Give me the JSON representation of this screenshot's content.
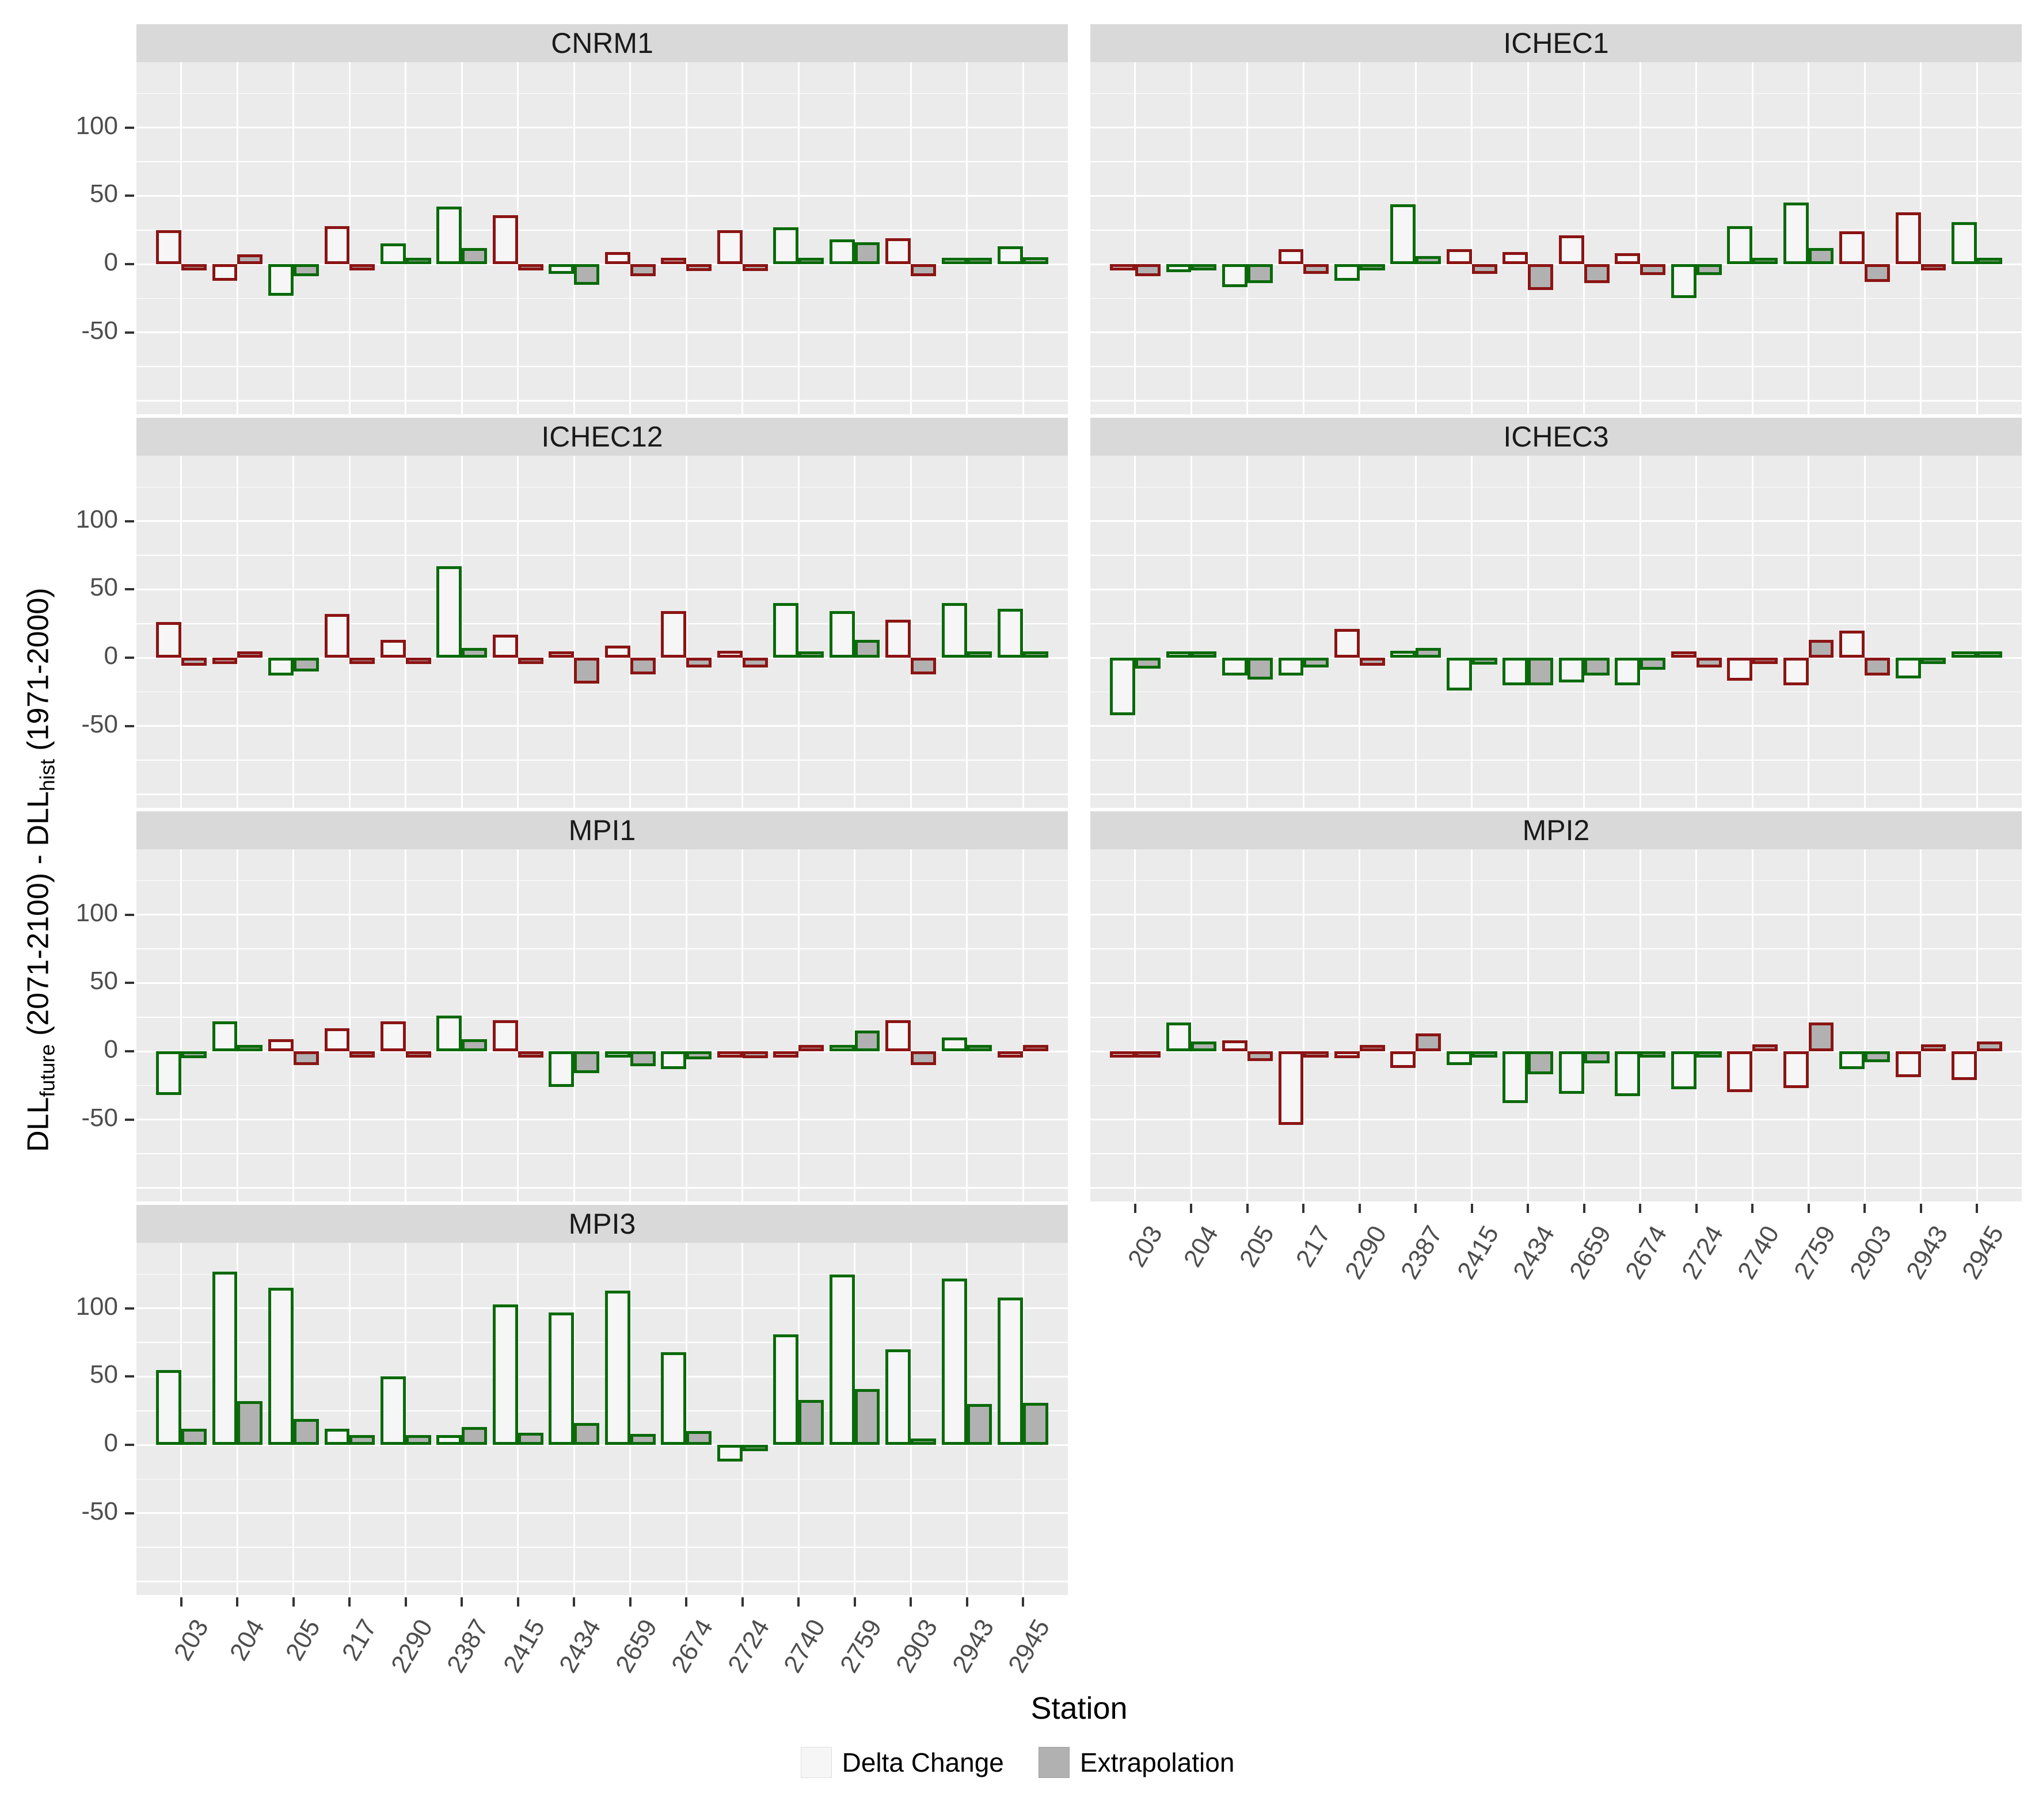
{
  "y_axis_title": {
    "dll1": "DLL",
    "sub1": "future",
    "mid": " (2071-2100) - ",
    "dll2": "DLL",
    "sub2": "hist",
    "tail": " (1971-2000)"
  },
  "x_axis_title": "Station",
  "legend": [
    {
      "label": "Delta Change",
      "fill": "#f6f6f6"
    },
    {
      "label": "Extrapolation",
      "fill": "#b1b1b1"
    }
  ],
  "colors": {
    "red_outline": "#8b1414",
    "green_outline": "#0a6a0a",
    "delta_fill": "#f6f6f6",
    "extrapolation_fill": "#b1b1b1",
    "panel_bg": "#ebebeb",
    "strip_bg": "#d9d9d9",
    "grid": "#ffffff",
    "axis_text": "#4d4d4d"
  },
  "chart_data": {
    "type": "bar",
    "title": "",
    "xlabel": "Station",
    "ylabel": "DLL_future (2071-2100) - DLL_hist (1971-2000)",
    "ylim": [
      -110,
      148
    ],
    "y_ticks": [
      100,
      50,
      0,
      -50
    ],
    "grid_major": [
      -100,
      -50,
      0,
      50,
      100
    ],
    "grid_minor": [
      -75,
      -25,
      25,
      75,
      125
    ],
    "legend_position": "bottom",
    "series_names": [
      "Delta Change",
      "Extrapolation"
    ],
    "categories": [
      "203",
      "204",
      "205",
      "217",
      "2290",
      "2387",
      "2415",
      "2434",
      "2659",
      "2674",
      "2724",
      "2740",
      "2759",
      "2903",
      "2943",
      "2945"
    ],
    "facets": [
      {
        "name": "CNRM1",
        "row": 0,
        "col": 0,
        "x_axis": false,
        "outline": [
          "red",
          "red",
          "green",
          "red",
          "green",
          "green",
          "red",
          "green",
          "red",
          "red",
          "red",
          "green",
          "green",
          "red",
          "green",
          "green"
        ],
        "delta": [
          25,
          -12,
          -23,
          28,
          15,
          42,
          36,
          -7,
          9,
          4,
          25,
          27,
          18,
          19,
          4,
          13
        ],
        "extrapolation": [
          -4,
          7,
          -9,
          -2,
          2,
          12,
          -2,
          -15,
          -9,
          -5,
          -5,
          4,
          16,
          -9,
          4,
          5
        ]
      },
      {
        "name": "ICHEC1",
        "row": 0,
        "col": 1,
        "x_axis": false,
        "outline": [
          "red",
          "green",
          "green",
          "red",
          "green",
          "green",
          "red",
          "red",
          "red",
          "red",
          "green",
          "green",
          "green",
          "red",
          "red",
          "green"
        ],
        "delta": [
          -2,
          -6,
          -17,
          11,
          -12,
          44,
          11,
          9,
          21,
          8,
          -25,
          28,
          45,
          24,
          38,
          31
        ],
        "extrapolation": [
          -9,
          -2,
          -14,
          -7,
          -3,
          6,
          -7,
          -19,
          -14,
          -8,
          -8,
          1,
          12,
          -13,
          -1,
          1
        ]
      },
      {
        "name": "ICHEC12",
        "row": 1,
        "col": 0,
        "x_axis": false,
        "outline": [
          "red",
          "red",
          "green",
          "red",
          "red",
          "green",
          "red",
          "red",
          "red",
          "red",
          "red",
          "green",
          "green",
          "red",
          "green",
          "green"
        ],
        "delta": [
          26,
          -2,
          -13,
          32,
          13,
          67,
          17,
          4,
          9,
          34,
          5,
          40,
          34,
          28,
          40,
          36
        ],
        "extrapolation": [
          -6,
          3,
          -10,
          -3,
          -3,
          7,
          -4,
          -19,
          -12,
          -7,
          -7,
          1,
          13,
          -12,
          1,
          2
        ]
      },
      {
        "name": "ICHEC3",
        "row": 1,
        "col": 1,
        "x_axis": false,
        "outline": [
          "green",
          "green",
          "green",
          "green",
          "red",
          "green",
          "green",
          "green",
          "green",
          "green",
          "red",
          "red",
          "red",
          "red",
          "green",
          "green"
        ],
        "delta": [
          -42,
          2,
          -13,
          -13,
          21,
          5,
          -24,
          -20,
          -18,
          -20,
          3,
          -17,
          -20,
          20,
          -15,
          1
        ],
        "extrapolation": [
          -8,
          2,
          -16,
          -7,
          -6,
          7,
          -5,
          -20,
          -13,
          -9,
          -7,
          -1,
          13,
          -13,
          -2,
          2
        ]
      },
      {
        "name": "MPI1",
        "row": 2,
        "col": 0,
        "x_axis": false,
        "outline": [
          "green",
          "green",
          "red",
          "red",
          "red",
          "green",
          "red",
          "green",
          "green",
          "green",
          "red",
          "red",
          "green",
          "red",
          "green",
          "red"
        ],
        "delta": [
          -32,
          22,
          9,
          17,
          22,
          26,
          23,
          -26,
          -4,
          -13,
          -2,
          -1,
          4,
          23,
          10,
          -2
        ],
        "extrapolation": [
          -5,
          4,
          -10,
          -1,
          -1,
          9,
          -2,
          -16,
          -11,
          -6,
          -5,
          4,
          15,
          -10,
          1,
          4
        ]
      },
      {
        "name": "MPI2",
        "row": 2,
        "col": 1,
        "x_axis": true,
        "outline": [
          "red",
          "green",
          "red",
          "red",
          "red",
          "red",
          "green",
          "green",
          "green",
          "green",
          "green",
          "red",
          "red",
          "green",
          "red",
          "red"
        ],
        "delta": [
          -1,
          21,
          8,
          -54,
          -5,
          -12,
          -10,
          -38,
          -31,
          -33,
          -28,
          -30,
          -27,
          -13,
          -19,
          -21
        ],
        "extrapolation": [
          -4,
          7,
          -7,
          -1,
          2,
          13,
          -1,
          -17,
          -9,
          -2,
          -2,
          5,
          21,
          -8,
          5,
          7
        ]
      },
      {
        "name": "MPI3",
        "row": 3,
        "col": 0,
        "x_axis": true,
        "outline": [
          "green",
          "green",
          "green",
          "green",
          "green",
          "green",
          "green",
          "green",
          "green",
          "green",
          "green",
          "green",
          "green",
          "green",
          "green",
          "green"
        ],
        "delta": [
          55,
          127,
          115,
          12,
          50,
          7,
          103,
          97,
          113,
          68,
          -12,
          81,
          125,
          70,
          122,
          108
        ],
        "extrapolation": [
          12,
          32,
          19,
          7,
          7,
          13,
          9,
          16,
          8,
          10,
          -4,
          33,
          41,
          3,
          30,
          31
        ]
      }
    ]
  }
}
